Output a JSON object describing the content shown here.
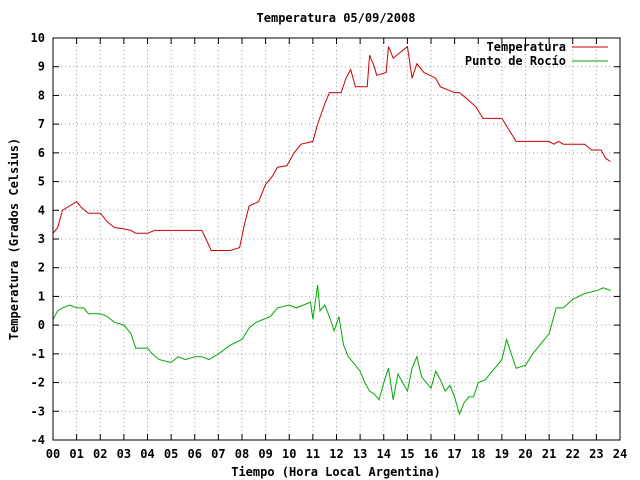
{
  "chart_data": {
    "type": "line",
    "title": "Temperatura 05/09/2008",
    "xlabel": "Tiempo (Hora Local Argentina)",
    "ylabel": "Temperatura (Grados Celsius)",
    "xlim": [
      0,
      24
    ],
    "ylim": [
      -4,
      10
    ],
    "x_ticks": [
      "00",
      "01",
      "02",
      "03",
      "04",
      "05",
      "06",
      "07",
      "08",
      "09",
      "10",
      "11",
      "12",
      "13",
      "14",
      "15",
      "16",
      "17",
      "18",
      "19",
      "20",
      "21",
      "22",
      "23",
      "24"
    ],
    "y_ticks": [
      "-4",
      "-3",
      "-2",
      "-1",
      "0",
      "1",
      "2",
      "3",
      "4",
      "5",
      "6",
      "7",
      "8",
      "9",
      "10"
    ],
    "grid": true,
    "legend_position": "top-right",
    "series": [
      {
        "name": "Temperatura",
        "color": "#cc0000",
        "points": [
          [
            0.0,
            3.2
          ],
          [
            0.2,
            3.4
          ],
          [
            0.4,
            4.0
          ],
          [
            0.7,
            4.15
          ],
          [
            1.0,
            4.3
          ],
          [
            1.2,
            4.1
          ],
          [
            1.5,
            3.9
          ],
          [
            2.0,
            3.9
          ],
          [
            2.3,
            3.6
          ],
          [
            2.6,
            3.4
          ],
          [
            3.0,
            3.35
          ],
          [
            3.3,
            3.3
          ],
          [
            3.5,
            3.2
          ],
          [
            4.0,
            3.2
          ],
          [
            4.3,
            3.3
          ],
          [
            5.0,
            3.3
          ],
          [
            5.5,
            3.3
          ],
          [
            6.0,
            3.3
          ],
          [
            6.3,
            3.3
          ],
          [
            6.5,
            2.95
          ],
          [
            6.7,
            2.6
          ],
          [
            7.5,
            2.6
          ],
          [
            7.9,
            2.7
          ],
          [
            8.1,
            3.5
          ],
          [
            8.3,
            4.15
          ],
          [
            8.7,
            4.3
          ],
          [
            9.0,
            4.9
          ],
          [
            9.3,
            5.2
          ],
          [
            9.5,
            5.5
          ],
          [
            9.9,
            5.55
          ],
          [
            10.2,
            6.0
          ],
          [
            10.5,
            6.3
          ],
          [
            11.0,
            6.4
          ],
          [
            11.2,
            7.0
          ],
          [
            11.5,
            7.7
          ],
          [
            11.7,
            8.1
          ],
          [
            12.2,
            8.1
          ],
          [
            12.4,
            8.6
          ],
          [
            12.6,
            8.9
          ],
          [
            12.8,
            8.3
          ],
          [
            13.3,
            8.3
          ],
          [
            13.4,
            9.4
          ],
          [
            13.6,
            9.0
          ],
          [
            13.7,
            8.7
          ],
          [
            14.1,
            8.8
          ],
          [
            14.2,
            9.7
          ],
          [
            14.4,
            9.3
          ],
          [
            14.7,
            9.5
          ],
          [
            15.0,
            9.7
          ],
          [
            15.2,
            8.6
          ],
          [
            15.4,
            9.1
          ],
          [
            15.7,
            8.8
          ],
          [
            16.2,
            8.6
          ],
          [
            16.4,
            8.3
          ],
          [
            17.0,
            8.1
          ],
          [
            17.2,
            8.1
          ],
          [
            17.5,
            7.9
          ],
          [
            17.9,
            7.6
          ],
          [
            18.2,
            7.2
          ],
          [
            18.6,
            7.2
          ],
          [
            19.0,
            7.2
          ],
          [
            19.3,
            6.8
          ],
          [
            19.6,
            6.4
          ],
          [
            20.5,
            6.4
          ],
          [
            21.0,
            6.4
          ],
          [
            21.2,
            6.3
          ],
          [
            21.4,
            6.4
          ],
          [
            21.6,
            6.3
          ],
          [
            22.5,
            6.3
          ],
          [
            22.8,
            6.1
          ],
          [
            23.2,
            6.1
          ],
          [
            23.4,
            5.8
          ],
          [
            23.6,
            5.7
          ]
        ]
      },
      {
        "name": "Punto de Rocío",
        "color": "#00aa00",
        "points": [
          [
            0.0,
            0.2
          ],
          [
            0.2,
            0.5
          ],
          [
            0.4,
            0.6
          ],
          [
            0.7,
            0.7
          ],
          [
            1.0,
            0.6
          ],
          [
            1.3,
            0.6
          ],
          [
            1.5,
            0.4
          ],
          [
            2.0,
            0.4
          ],
          [
            2.3,
            0.3
          ],
          [
            2.6,
            0.1
          ],
          [
            3.0,
            0.0
          ],
          [
            3.3,
            -0.3
          ],
          [
            3.5,
            -0.8
          ],
          [
            4.0,
            -0.8
          ],
          [
            4.2,
            -1.0
          ],
          [
            4.5,
            -1.2
          ],
          [
            5.0,
            -1.3
          ],
          [
            5.3,
            -1.1
          ],
          [
            5.6,
            -1.2
          ],
          [
            6.0,
            -1.1
          ],
          [
            6.3,
            -1.1
          ],
          [
            6.6,
            -1.2
          ],
          [
            7.0,
            -1.0
          ],
          [
            7.5,
            -0.7
          ],
          [
            8.0,
            -0.5
          ],
          [
            8.3,
            -0.1
          ],
          [
            8.6,
            0.1
          ],
          [
            8.9,
            0.2
          ],
          [
            9.2,
            0.3
          ],
          [
            9.5,
            0.6
          ],
          [
            10.0,
            0.7
          ],
          [
            10.3,
            0.6
          ],
          [
            10.6,
            0.7
          ],
          [
            10.9,
            0.8
          ],
          [
            11.0,
            0.2
          ],
          [
            11.2,
            1.4
          ],
          [
            11.3,
            0.5
          ],
          [
            11.5,
            0.7
          ],
          [
            11.7,
            0.3
          ],
          [
            11.9,
            -0.2
          ],
          [
            12.1,
            0.3
          ],
          [
            12.3,
            -0.7
          ],
          [
            12.5,
            -1.1
          ],
          [
            12.8,
            -1.4
          ],
          [
            13.0,
            -1.6
          ],
          [
            13.2,
            -2.0
          ],
          [
            13.4,
            -2.3
          ],
          [
            13.6,
            -2.4
          ],
          [
            13.8,
            -2.6
          ],
          [
            14.0,
            -2.0
          ],
          [
            14.2,
            -1.5
          ],
          [
            14.4,
            -2.6
          ],
          [
            14.6,
            -1.7
          ],
          [
            14.8,
            -2.0
          ],
          [
            15.0,
            -2.3
          ],
          [
            15.2,
            -1.5
          ],
          [
            15.4,
            -1.1
          ],
          [
            15.6,
            -1.8
          ],
          [
            15.8,
            -2.0
          ],
          [
            16.0,
            -2.2
          ],
          [
            16.2,
            -1.6
          ],
          [
            16.4,
            -1.9
          ],
          [
            16.6,
            -2.3
          ],
          [
            16.8,
            -2.1
          ],
          [
            17.0,
            -2.5
          ],
          [
            17.2,
            -3.1
          ],
          [
            17.4,
            -2.7
          ],
          [
            17.6,
            -2.5
          ],
          [
            17.8,
            -2.5
          ],
          [
            18.0,
            -2.0
          ],
          [
            18.3,
            -1.9
          ],
          [
            18.6,
            -1.6
          ],
          [
            19.0,
            -1.2
          ],
          [
            19.2,
            -0.5
          ],
          [
            19.4,
            -1.0
          ],
          [
            19.6,
            -1.5
          ],
          [
            20.0,
            -1.4
          ],
          [
            20.3,
            -1.0
          ],
          [
            20.6,
            -0.7
          ],
          [
            21.0,
            -0.3
          ],
          [
            21.3,
            0.6
          ],
          [
            21.6,
            0.6
          ],
          [
            22.0,
            0.9
          ],
          [
            22.5,
            1.1
          ],
          [
            23.0,
            1.2
          ],
          [
            23.3,
            1.3
          ],
          [
            23.6,
            1.2
          ]
        ]
      }
    ]
  }
}
